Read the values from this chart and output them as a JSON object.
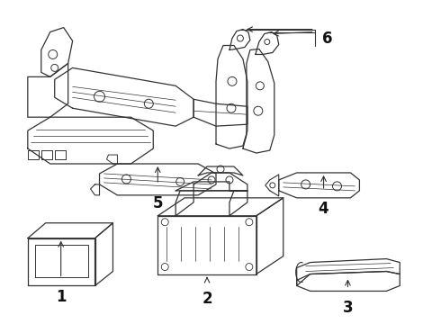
{
  "bg": "#ffffff",
  "lc": "#333333",
  "lw": 0.9,
  "fs": 11,
  "fc": "#ffffff",
  "label_color": "#111111"
}
